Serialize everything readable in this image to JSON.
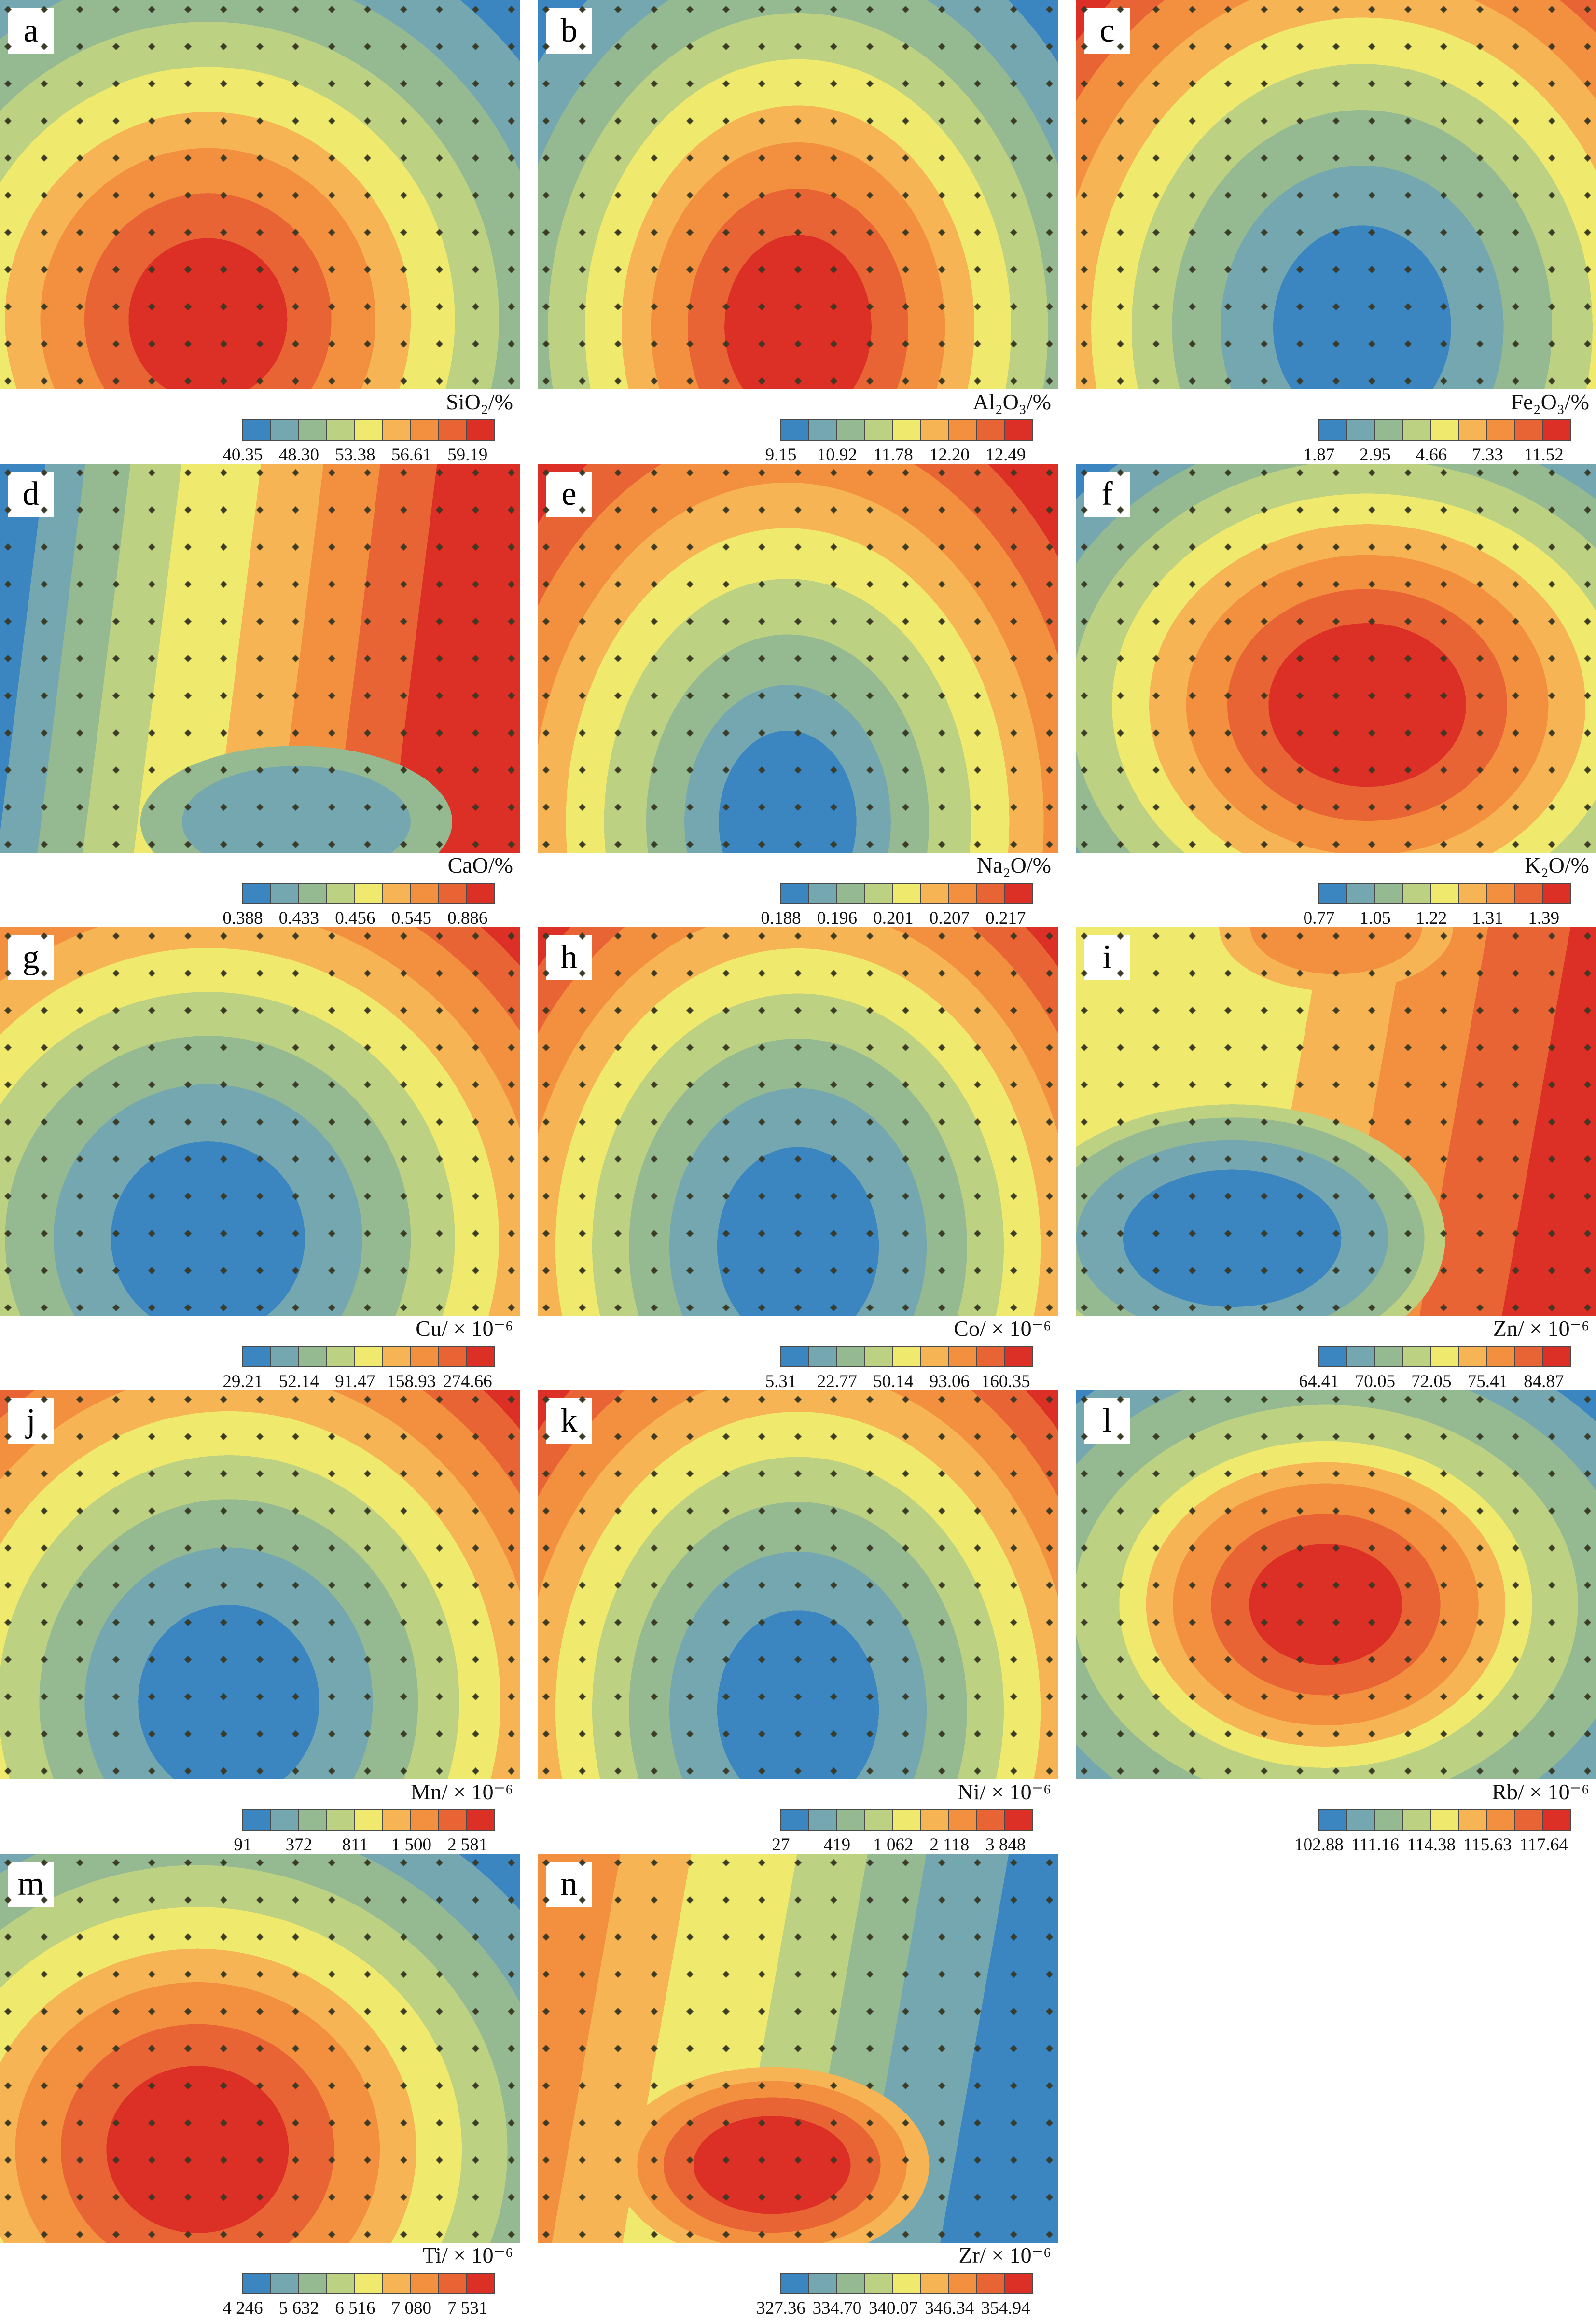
{
  "figure": {
    "palette": [
      "#3b86c0",
      "#74a7b0",
      "#95ba92",
      "#bdd183",
      "#efe96d",
      "#f7b454",
      "#f29040",
      "#e96434",
      "#dc2f26"
    ],
    "dot_color": "#3d3a26",
    "sample_grid": {
      "cols": 15,
      "rows": 11
    },
    "panels": [
      {
        "letter": "a",
        "label": "SiO₂/%",
        "ticks": [
          "40.35",
          "48.30",
          "53.38",
          "56.61",
          "59.19"
        ]
      },
      {
        "letter": "b",
        "label": "Al₂O₃/%",
        "ticks": [
          "9.15",
          "10.92",
          "11.78",
          "12.20",
          "12.49"
        ]
      },
      {
        "letter": "c",
        "label": "Fe₂O₃/%",
        "ticks": [
          "1.87",
          "2.95",
          "4.66",
          "7.33",
          "11.52"
        ]
      },
      {
        "letter": "d",
        "label": "CaO/%",
        "ticks": [
          "0.388",
          "0.433",
          "0.456",
          "0.545",
          "0.886"
        ]
      },
      {
        "letter": "e",
        "label": "Na₂O/%",
        "ticks": [
          "0.188",
          "0.196",
          "0.201",
          "0.207",
          "0.217"
        ]
      },
      {
        "letter": "f",
        "label": "K₂O/%",
        "ticks": [
          "0.77",
          "1.05",
          "1.22",
          "1.31",
          "1.39"
        ]
      },
      {
        "letter": "g",
        "label": "Cu/ × 10⁻⁶",
        "ticks": [
          "29.21",
          "52.14",
          "91.47",
          "158.93",
          "274.66"
        ]
      },
      {
        "letter": "h",
        "label": "Co/ × 10⁻⁶",
        "ticks": [
          "5.31",
          "22.77",
          "50.14",
          "93.06",
          "160.35"
        ]
      },
      {
        "letter": "i",
        "label": "Zn/ × 10⁻⁶",
        "ticks": [
          "64.41",
          "70.05",
          "72.05",
          "75.41",
          "84.87"
        ]
      },
      {
        "letter": "j",
        "label": "Mn/ × 10⁻⁶",
        "ticks": [
          "91",
          "372",
          "811",
          "1 500",
          "2 581"
        ]
      },
      {
        "letter": "k",
        "label": "Ni/ × 10⁻⁶",
        "ticks": [
          "27",
          "419",
          "1 062",
          "2 118",
          "3 848"
        ]
      },
      {
        "letter": "l",
        "label": "Rb/ × 10⁻⁶",
        "ticks": [
          "102.88",
          "111.16",
          "114.38",
          "115.63",
          "117.64"
        ]
      },
      {
        "letter": "m",
        "label": "Ti/ × 10⁻⁶",
        "ticks": [
          "4 246",
          "5 632",
          "6 516",
          "7 080",
          "7 531"
        ]
      },
      {
        "letter": "n",
        "label": "Zr/ × 10⁻⁶",
        "ticks": [
          "327.36",
          "334.70",
          "340.07",
          "346.34",
          "354.94"
        ]
      }
    ]
  },
  "chart_data": [
    {
      "type": "heatmap",
      "element": "SiO2",
      "label": "SiO₂/%",
      "unit": "%",
      "legend_ticks": [
        40.35,
        48.3,
        53.38,
        56.61,
        59.19
      ],
      "n_classes": 9,
      "distribution": "high (red) core at lower-left-center, decreasing concentrically to low (blue) at upper corners"
    },
    {
      "type": "heatmap",
      "element": "Al2O3",
      "label": "Al₂O₃/%",
      "unit": "%",
      "legend_ticks": [
        9.15,
        10.92,
        11.78,
        12.2,
        12.49
      ],
      "n_classes": 9,
      "distribution": "high core at lower-center, low at top corners"
    },
    {
      "type": "heatmap",
      "element": "Fe2O3",
      "label": "Fe₂O₃/%",
      "unit": "%",
      "legend_ticks": [
        1.87,
        2.95,
        4.66,
        7.33,
        11.52
      ],
      "n_classes": 9,
      "distribution": "low (blue) basin at lower-center, increasing outward to high (red) along top edge"
    },
    {
      "type": "heatmap",
      "element": "CaO",
      "label": "CaO/%",
      "unit": "%",
      "legend_ticks": [
        0.388,
        0.433,
        0.456,
        0.545,
        0.886
      ],
      "n_classes": 9,
      "distribution": "low in west/northwest, secondary low basin south-center, high along east side"
    },
    {
      "type": "heatmap",
      "element": "Na2O",
      "label": "Na₂O/%",
      "unit": "%",
      "legend_ticks": [
        0.188,
        0.196,
        0.201,
        0.207,
        0.217
      ],
      "n_classes": 9,
      "distribution": "irregular low basin at south-center, high along top edge and corners"
    },
    {
      "type": "heatmap",
      "element": "K2O",
      "label": "K₂O/%",
      "unit": "%",
      "legend_ticks": [
        0.77,
        1.05,
        1.22,
        1.31,
        1.39
      ],
      "n_classes": 9,
      "distribution": "high core slightly right of center, low at upper corners"
    },
    {
      "type": "heatmap",
      "element": "Cu",
      "label": "Cu/ × 10⁻⁶",
      "unit": "ppm",
      "legend_ticks": [
        29.21,
        52.14,
        91.47,
        158.93,
        274.66
      ],
      "n_classes": 9,
      "distribution": "low basin at lower-left-center, high toward edges and corners"
    },
    {
      "type": "heatmap",
      "element": "Co",
      "label": "Co/ × 10⁻⁶",
      "unit": "ppm",
      "legend_ticks": [
        5.31,
        22.77,
        50.14,
        93.06,
        160.35
      ],
      "n_classes": 9,
      "distribution": "low basin at lower-center, high toward edges"
    },
    {
      "type": "heatmap",
      "element": "Zn",
      "label": "Zn/ × 10⁻⁶",
      "unit": "ppm",
      "legend_ticks": [
        64.41,
        70.05,
        72.05,
        75.41,
        84.87
      ],
      "n_classes": 9,
      "distribution": "low basin west-center, high band along east edge, yellow/orange northwest"
    },
    {
      "type": "heatmap",
      "element": "Mn",
      "label": "Mn/ × 10⁻⁶",
      "unit": "ppm",
      "legend_ticks": [
        91,
        372,
        811,
        1500,
        2581
      ],
      "n_classes": 9,
      "distribution": "low basin at lower-center, high toward edges and corners"
    },
    {
      "type": "heatmap",
      "element": "Ni",
      "label": "Ni/ × 10⁻⁶",
      "unit": "ppm",
      "legend_ticks": [
        27,
        419,
        1062,
        2118,
        3848
      ],
      "n_classes": 9,
      "distribution": "low basin at lower-center, high toward edges and corners"
    },
    {
      "type": "heatmap",
      "element": "Rb",
      "label": "Rb/ × 10⁻⁶",
      "unit": "ppm",
      "legend_ticks": [
        102.88,
        111.16,
        114.38,
        115.63,
        117.64
      ],
      "n_classes": 9,
      "distribution": "irregular high (red) blob at center, low (blue-teal) at corners and east edge"
    },
    {
      "type": "heatmap",
      "element": "Ti",
      "label": "Ti/ × 10⁻⁶",
      "unit": "ppm",
      "legend_ticks": [
        4246,
        5632,
        6516,
        7080,
        7531
      ],
      "n_classes": 9,
      "distribution": "high core at southwest-center, low at top corners"
    },
    {
      "type": "heatmap",
      "element": "Zr",
      "label": "Zr/ × 10⁻⁶",
      "unit": "ppm",
      "legend_ticks": [
        327.36,
        334.7,
        340.07,
        346.34,
        354.94
      ],
      "n_classes": 9,
      "distribution": "high blob at south-center, orange band on west, low (blue) east side"
    }
  ]
}
